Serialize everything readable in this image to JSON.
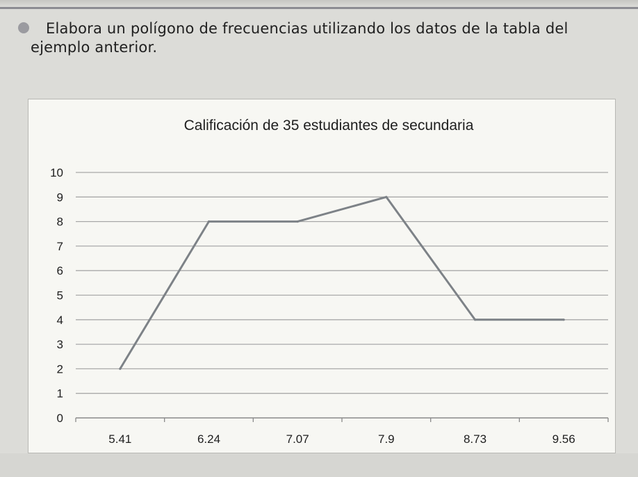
{
  "instruction": {
    "text": "Elabora un polígono de frecuencias utilizando los datos de la tabla del ejemplo anterior."
  },
  "chart_data": {
    "type": "line",
    "title": "Calificación de 35 estudiantes de secundaria",
    "xlabel": "",
    "ylabel": "",
    "categories": [
      "5.41",
      "6.24",
      "7.07",
      "7.9",
      "8.73",
      "9.56"
    ],
    "series": [
      {
        "values": [
          2,
          8,
          8,
          9,
          4,
          4
        ]
      }
    ],
    "ylim": [
      0,
      10
    ],
    "yticks": [
      "0",
      "1",
      "2",
      "3",
      "4",
      "5",
      "6",
      "7",
      "8",
      "9",
      "10"
    ],
    "grid": true,
    "legend": "none",
    "colors": {
      "line": "#7d8287",
      "grid": "#a9a9a9",
      "axis": "#8a8a8a"
    }
  }
}
